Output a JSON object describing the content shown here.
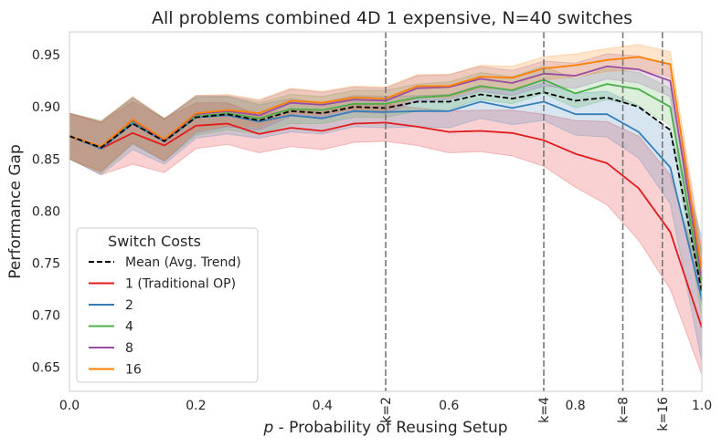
{
  "chart_data": {
    "type": "line",
    "title": "All problems combined 4D 1 expensive, N=40 switches",
    "xlabel": "p - Probability of Reusing Setup",
    "xlabel_symbol": "p",
    "xlabel_rest": " - Probability of Reusing Setup",
    "ylabel": "Performance Gap",
    "xlim": [
      0.0,
      1.0
    ],
    "ylim": [
      0.627,
      0.972
    ],
    "xticks": [
      "0.0",
      "0.2",
      "0.4",
      "0.6",
      "0.8",
      "1.0"
    ],
    "yticks": [
      "0.65",
      "0.70",
      "0.75",
      "0.80",
      "0.85",
      "0.90",
      "0.95"
    ],
    "grid": false,
    "x": [
      0.0,
      0.05,
      0.1,
      0.15,
      0.2,
      0.25,
      0.3,
      0.35,
      0.4,
      0.45,
      0.5,
      0.55,
      0.6,
      0.65,
      0.7,
      0.75,
      0.8,
      0.85,
      0.9,
      0.95,
      1.0
    ],
    "vlines": [
      {
        "x": 0.5,
        "label": "k=2"
      },
      {
        "x": 0.75,
        "label": "k=4"
      },
      {
        "x": 0.875,
        "label": "k=8"
      },
      {
        "x": 0.9375,
        "label": "k=16"
      }
    ],
    "legend": {
      "title": "Switch Costs",
      "position": "lower-left"
    },
    "series": [
      {
        "name": "1 (Traditional OP)",
        "color": "#e31a1c",
        "style": "solid",
        "values": [
          0.872,
          0.86,
          0.875,
          0.863,
          0.882,
          0.884,
          0.874,
          0.88,
          0.877,
          0.884,
          0.885,
          0.881,
          0.876,
          0.877,
          0.875,
          0.868,
          0.855,
          0.846,
          0.822,
          0.78,
          0.688
        ],
        "band": [
          0.022,
          0.025,
          0.03,
          0.026,
          0.022,
          0.02,
          0.018,
          0.018,
          0.018,
          0.018,
          0.018,
          0.018,
          0.02,
          0.02,
          0.022,
          0.025,
          0.032,
          0.04,
          0.05,
          0.055,
          0.045
        ]
      },
      {
        "name": "2",
        "color": "#377eb8",
        "style": "solid",
        "values": [
          0.872,
          0.86,
          0.884,
          0.867,
          0.89,
          0.892,
          0.886,
          0.892,
          0.889,
          0.896,
          0.895,
          0.896,
          0.896,
          0.905,
          0.899,
          0.905,
          0.893,
          0.893,
          0.876,
          0.842,
          0.715
        ],
        "band": [
          0.022,
          0.025,
          0.025,
          0.022,
          0.02,
          0.018,
          0.016,
          0.016,
          0.015,
          0.015,
          0.015,
          0.015,
          0.016,
          0.016,
          0.016,
          0.018,
          0.02,
          0.022,
          0.025,
          0.035,
          0.06
        ]
      },
      {
        "name": "4",
        "color": "#4daf4a",
        "style": "solid",
        "values": [
          0.872,
          0.862,
          0.886,
          0.868,
          0.891,
          0.894,
          0.889,
          0.898,
          0.897,
          0.903,
          0.903,
          0.909,
          0.911,
          0.92,
          0.916,
          0.926,
          0.913,
          0.922,
          0.917,
          0.9,
          0.728
        ],
        "band": [
          0.022,
          0.025,
          0.022,
          0.02,
          0.018,
          0.016,
          0.015,
          0.014,
          0.013,
          0.013,
          0.013,
          0.013,
          0.013,
          0.013,
          0.013,
          0.013,
          0.014,
          0.015,
          0.016,
          0.018,
          0.03
        ]
      },
      {
        "name": "8",
        "color": "#984ea3",
        "style": "solid",
        "values": [
          0.872,
          0.862,
          0.887,
          0.868,
          0.893,
          0.896,
          0.892,
          0.904,
          0.902,
          0.907,
          0.906,
          0.918,
          0.919,
          0.927,
          0.923,
          0.932,
          0.93,
          0.939,
          0.936,
          0.925,
          0.735
        ],
        "band": [
          0.022,
          0.024,
          0.022,
          0.02,
          0.018,
          0.015,
          0.014,
          0.013,
          0.012,
          0.012,
          0.012,
          0.012,
          0.012,
          0.012,
          0.012,
          0.012,
          0.012,
          0.012,
          0.013,
          0.015,
          0.025
        ]
      },
      {
        "name": "16",
        "color": "#ff7f00",
        "style": "solid",
        "values": [
          0.872,
          0.862,
          0.888,
          0.869,
          0.894,
          0.897,
          0.894,
          0.906,
          0.904,
          0.909,
          0.908,
          0.92,
          0.92,
          0.929,
          0.928,
          0.937,
          0.94,
          0.945,
          0.948,
          0.941,
          0.742
        ],
        "band": [
          0.022,
          0.024,
          0.022,
          0.02,
          0.017,
          0.015,
          0.013,
          0.012,
          0.011,
          0.011,
          0.011,
          0.011,
          0.011,
          0.011,
          0.011,
          0.011,
          0.011,
          0.011,
          0.012,
          0.012,
          0.022
        ]
      },
      {
        "name": "Mean (Avg. Trend)",
        "color": "#000000",
        "style": "dashed",
        "legend_first": true,
        "values": [
          0.872,
          0.861,
          0.884,
          0.867,
          0.89,
          0.893,
          0.887,
          0.896,
          0.894,
          0.9,
          0.899,
          0.905,
          0.905,
          0.912,
          0.908,
          0.914,
          0.906,
          0.909,
          0.9,
          0.878,
          0.722
        ],
        "band": null
      }
    ]
  }
}
